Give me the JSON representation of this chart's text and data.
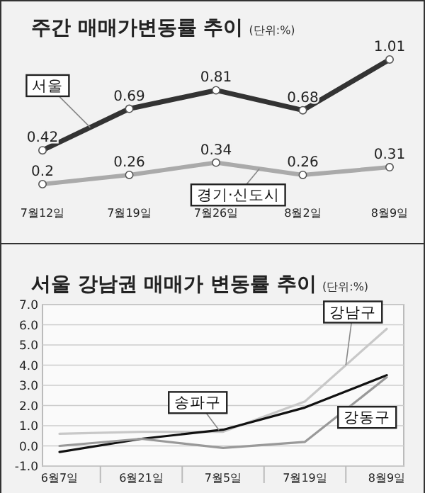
{
  "chart_data": [
    {
      "type": "line",
      "title": "주간 매매가변동률 추이",
      "subtitle": "(단위:%)",
      "categories": [
        "7월12일",
        "7월19일",
        "7월26일",
        "8월2일",
        "8월9일"
      ],
      "data_labels": true,
      "legend": false,
      "marker": "circle",
      "grid": false,
      "tick_labels": "x",
      "series": [
        {
          "name": "서울",
          "color": "#333333",
          "values": [
            0.42,
            0.69,
            0.81,
            0.68,
            1.01
          ]
        },
        {
          "name": "경기·신도시",
          "color": "#aaaaaa",
          "values": [
            0.2,
            0.26,
            0.34,
            0.26,
            0.31
          ]
        }
      ]
    },
    {
      "type": "line",
      "title": "서울 강남권 매매가 변동률 추이",
      "subtitle": "(단위:%)",
      "categories": [
        "6월7일",
        "6월21일",
        "7월5일",
        "7월19일",
        "8월9일"
      ],
      "ylim": [
        -1,
        7
      ],
      "yticks": [
        {
          "value": -1,
          "label": "-1.0"
        },
        {
          "value": 0,
          "label": "0.0"
        },
        {
          "value": 1,
          "label": "1.0"
        },
        {
          "value": 2,
          "label": "2.0"
        },
        {
          "value": 3,
          "label": "3.0"
        },
        {
          "value": 4,
          "label": "4.0"
        },
        {
          "value": 5,
          "label": "5.0"
        },
        {
          "value": 6,
          "label": "6.0"
        },
        {
          "value": 7,
          "label": "7.0"
        }
      ],
      "grid": "y",
      "legend": false,
      "marker": "none",
      "series": [
        {
          "name": "강남구",
          "color": "#c8c8c8",
          "values": [
            0.6,
            0.7,
            0.7,
            2.2,
            5.8
          ]
        },
        {
          "name": "송파구",
          "color": "#111111",
          "values": [
            -0.3,
            0.35,
            0.8,
            1.9,
            3.5
          ]
        },
        {
          "name": "강동구",
          "color": "#999999",
          "values": [
            0.0,
            0.35,
            -0.1,
            0.2,
            3.4
          ]
        }
      ]
    }
  ]
}
